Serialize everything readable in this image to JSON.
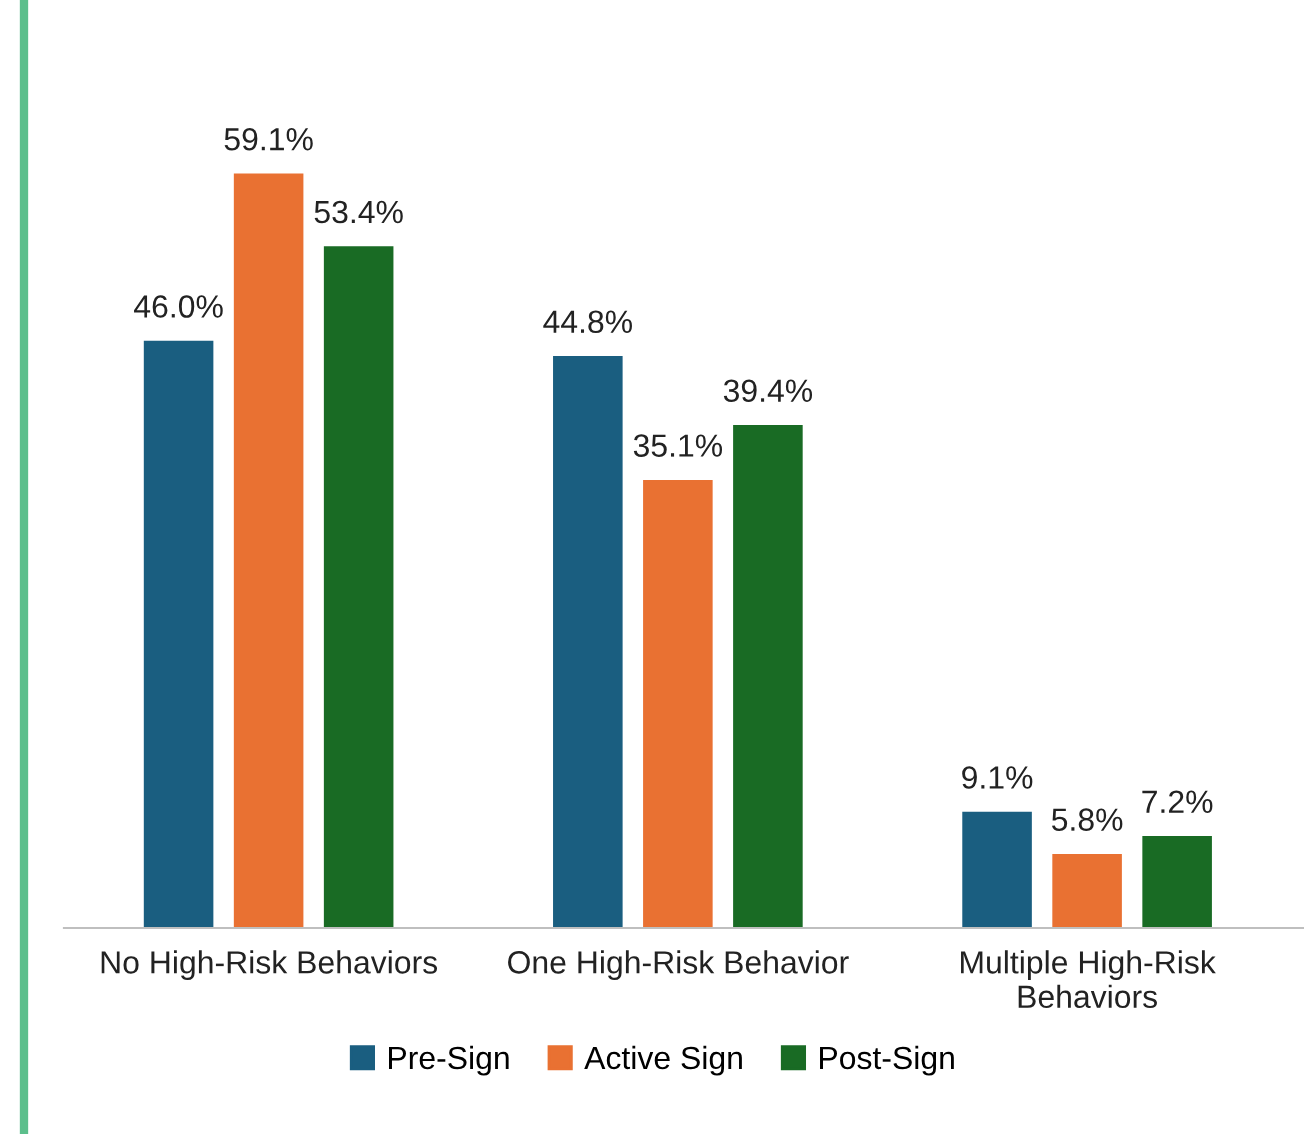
{
  "chart_data": {
    "type": "bar",
    "categories": [
      "No High-Risk Behaviors",
      "One High-Risk Behavior",
      "Multiple High-Risk Behaviors"
    ],
    "series": [
      {
        "name": "Pre-Sign",
        "color": "#1a5e80",
        "values": [
          46.0,
          44.8,
          9.1
        ],
        "value_labels": [
          "46.0%",
          "44.8%",
          "9.1%"
        ]
      },
      {
        "name": "Active Sign",
        "color": "#e97132",
        "values": [
          59.1,
          35.1,
          5.8
        ],
        "value_labels": [
          "59.1%",
          "35.1%",
          "5.8%"
        ]
      },
      {
        "name": "Post-Sign",
        "color": "#196b24",
        "values": [
          53.4,
          39.4,
          7.2
        ],
        "value_labels": [
          "53.4%",
          "39.4%",
          "7.2%"
        ]
      }
    ],
    "legend": "bottom",
    "grid": false
  }
}
